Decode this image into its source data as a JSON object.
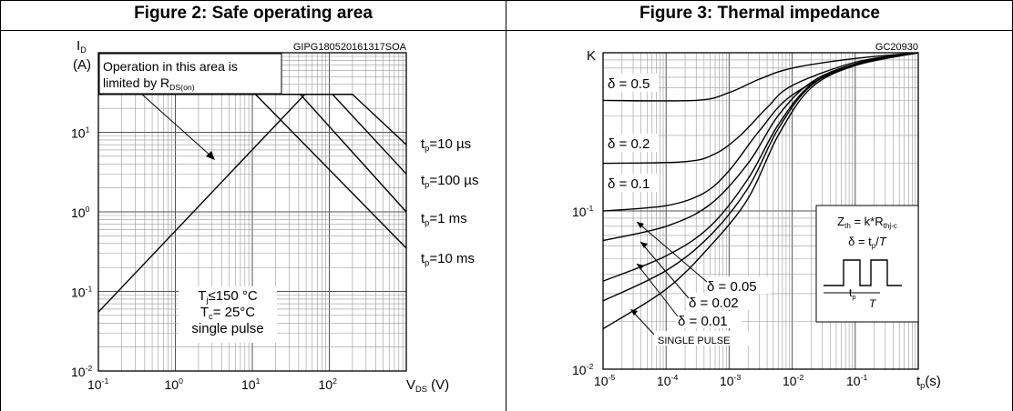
{
  "figures": [
    {
      "title": "Figure 2: Safe operating area",
      "code": "GIPG180520161317SOA"
    },
    {
      "title": "Figure 3: Thermal impedance",
      "code": "GC20930"
    }
  ],
  "chart_data": [
    {
      "type": "line",
      "title": "Figure 2: Safe operating area",
      "code": "GIPG180520161317SOA",
      "xscale": "log",
      "yscale": "log",
      "xlim": [
        0.1,
        1000
      ],
      "ylim": [
        0.01,
        100
      ],
      "xlabel": "V",
      "xlabel_sub": "DS",
      "xunit": "(V)",
      "ylabel": "I",
      "ylabel_sub": "D",
      "yunit": "(A)",
      "grid": true,
      "x_ticks": [
        {
          "base": "10",
          "exp": "-1"
        },
        {
          "base": "10",
          "exp": "0"
        },
        {
          "base": "10",
          "exp": "1"
        },
        {
          "base": "10",
          "exp": "2"
        }
      ],
      "y_ticks": [
        {
          "base": "10",
          "exp": "-2"
        },
        {
          "base": "10",
          "exp": "-1"
        },
        {
          "base": "10",
          "exp": "0"
        },
        {
          "base": "10",
          "exp": "1"
        }
      ],
      "annotation": {
        "line1": "Operation in this area is",
        "line2": "limited by R",
        "line2_sub": "DS(on)"
      },
      "conditions": [
        {
          "text": "T",
          "sub": "j",
          "rest": "≤150 °C"
        },
        {
          "text": "T",
          "sub": "c",
          "rest": "= 25°C"
        },
        {
          "text": "single pulse",
          "sub": "",
          "rest": ""
        }
      ],
      "rds_on_limit": {
        "points": [
          [
            0.1,
            0.055
          ],
          [
            48,
            30
          ]
        ]
      },
      "current_limit": 30,
      "series": [
        {
          "label_main": "t",
          "label_sub": "p",
          "label_rest": "=10 µs",
          "points": [
            [
              0.1,
              30
            ],
            [
              200,
              30
            ],
            [
              1000,
              7
            ]
          ]
        },
        {
          "label_main": "t",
          "label_sub": "p",
          "label_rest": "=100 µs",
          "points": [
            [
              0.1,
              30
            ],
            [
              110,
              30
            ],
            [
              1000,
              3
            ]
          ]
        },
        {
          "label_main": "t",
          "label_sub": "p",
          "label_rest": "=1 ms",
          "points": [
            [
              0.1,
              30
            ],
            [
              42,
              30
            ],
            [
              1000,
              1
            ]
          ]
        },
        {
          "label_main": "t",
          "label_sub": "p",
          "label_rest": "=10 ms",
          "points": [
            [
              0.1,
              30
            ],
            [
              11,
              30
            ],
            [
              1000,
              0.35
            ]
          ]
        }
      ]
    },
    {
      "type": "line",
      "title": "Figure 3: Thermal impedance",
      "code": "GC20930",
      "xscale": "log",
      "yscale": "log",
      "xlim": [
        1e-05,
        1
      ],
      "ylim": [
        0.01,
        1
      ],
      "xlabel": "t",
      "xlabel_sub": "p",
      "xunit": "(s)",
      "ylabel": "K",
      "grid": true,
      "x_ticks": [
        {
          "base": "10",
          "exp": "-5"
        },
        {
          "base": "10",
          "exp": "-4"
        },
        {
          "base": "10",
          "exp": "-3"
        },
        {
          "base": "10",
          "exp": "-2"
        },
        {
          "base": "10",
          "exp": "-1"
        }
      ],
      "y_ticks": [
        {
          "base": "10",
          "exp": "-2"
        },
        {
          "base": "10",
          "exp": "-1"
        }
      ],
      "inset": {
        "line1": "Z",
        "line1_sub": "th",
        "line1_rest": " = k*R",
        "line1_sub2": "thj-c",
        "line2": "δ = t",
        "line2_sub": "p",
        "line2_rest": "/T",
        "pulse_tp": "t",
        "pulse_tp_sub": "p",
        "pulse_T": "T"
      },
      "series": [
        {
          "label": "δ = 0.5",
          "points": [
            [
              1e-05,
              0.5
            ],
            [
              0.0003,
              0.5
            ],
            [
              0.001,
              0.56
            ],
            [
              0.003,
              0.68
            ],
            [
              0.01,
              0.8
            ],
            [
              0.1,
              0.92
            ],
            [
              1,
              1
            ]
          ]
        },
        {
          "label": "δ = 0.2",
          "points": [
            [
              1e-05,
              0.2
            ],
            [
              0.0002,
              0.205
            ],
            [
              0.0006,
              0.23
            ],
            [
              0.0015,
              0.3
            ],
            [
              0.004,
              0.45
            ],
            [
              0.01,
              0.62
            ],
            [
              0.1,
              0.87
            ],
            [
              1,
              1
            ]
          ]
        },
        {
          "label": "δ = 0.1",
          "points": [
            [
              1e-05,
              0.1
            ],
            [
              0.0001,
              0.108
            ],
            [
              0.0004,
              0.13
            ],
            [
              0.001,
              0.18
            ],
            [
              0.003,
              0.32
            ],
            [
              0.01,
              0.54
            ],
            [
              0.1,
              0.85
            ],
            [
              1,
              1
            ]
          ]
        },
        {
          "label": "δ = 0.05",
          "points": [
            [
              1e-05,
              0.065
            ],
            [
              0.0001,
              0.08
            ],
            [
              0.0005,
              0.11
            ],
            [
              0.002,
              0.2
            ],
            [
              0.006,
              0.4
            ],
            [
              0.02,
              0.65
            ],
            [
              0.1,
              0.85
            ],
            [
              1,
              1
            ]
          ]
        },
        {
          "label": "δ = 0.02",
          "points": [
            [
              1e-05,
              0.036
            ],
            [
              0.0001,
              0.052
            ],
            [
              0.0005,
              0.08
            ],
            [
              0.002,
              0.16
            ],
            [
              0.006,
              0.35
            ],
            [
              0.02,
              0.63
            ],
            [
              0.1,
              0.84
            ],
            [
              1,
              1
            ]
          ]
        },
        {
          "label": "δ = 0.01",
          "points": [
            [
              1e-05,
              0.027
            ],
            [
              0.0001,
              0.042
            ],
            [
              0.0005,
              0.07
            ],
            [
              0.002,
              0.14
            ],
            [
              0.006,
              0.33
            ],
            [
              0.02,
              0.62
            ],
            [
              0.1,
              0.84
            ],
            [
              1,
              1
            ]
          ]
        },
        {
          "label": "SINGLE PULSE",
          "points": [
            [
              1e-05,
              0.018
            ],
            [
              0.0001,
              0.032
            ],
            [
              0.0005,
              0.06
            ],
            [
              0.002,
              0.12
            ],
            [
              0.006,
              0.3
            ],
            [
              0.02,
              0.6
            ],
            [
              0.1,
              0.83
            ],
            [
              1,
              1
            ]
          ]
        }
      ]
    }
  ]
}
